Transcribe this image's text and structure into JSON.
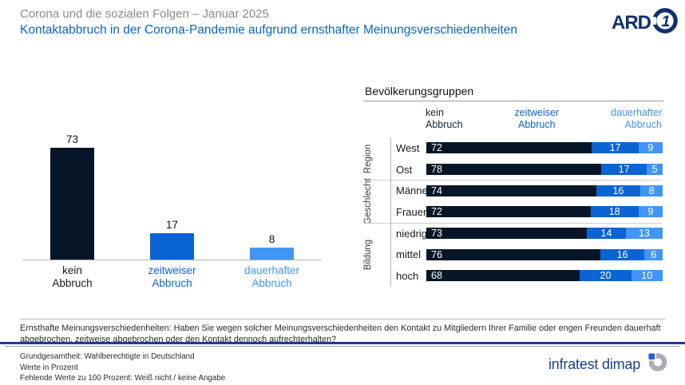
{
  "header": {
    "supertitle": "Corona und die sozialen Folgen – Januar 2025",
    "title": "Kontaktabbruch in der Corona-Pandemie aufgrund ernsthafter Meinungsverschiedenheiten",
    "ard_logo_text": "ARD"
  },
  "colors": {
    "dark_navy_bar": "#071626",
    "medium_blue_bar": "#0a64d4",
    "light_blue_bar": "#4195f4",
    "title_blue": "#0d63c8",
    "supertitle_gray": "#8a8a8a",
    "footer_navy": "#203d8f",
    "brand_navy": "#1d3e91"
  },
  "chart_data": [
    {
      "type": "bar",
      "title": "",
      "categories": [
        "kein\nAbbruch",
        "zeitweiser\nAbbruch",
        "dauerhafter\nAbbruch"
      ],
      "values": [
        73,
        17,
        8
      ],
      "bar_colors": [
        "#071626",
        "#0a64d4",
        "#4195f4"
      ],
      "label_colors": [
        "#1a1a1a",
        "#0a64d4",
        "#4195f4"
      ],
      "xlabel": "",
      "ylabel": "",
      "unit": "Prozent",
      "ylim": [
        0,
        100
      ],
      "grid": false,
      "value_labels": "above bars"
    },
    {
      "type": "bar",
      "subtype": "horizontal-stacked-normalized",
      "title": "Bevölkerungsgruppen",
      "legend": [
        "kein\nAbbruch",
        "zeitweiser\nAbbruch",
        "dauerhafter\nAbbruch"
      ],
      "legend_position": "top",
      "series_names": [
        "kein Abbruch",
        "zeitweiser Abbruch",
        "dauerhafter Abbruch"
      ],
      "segment_colors": [
        "#071626",
        "#0a64d4",
        "#4195f4"
      ],
      "unit": "Prozent",
      "groups": [
        {
          "name": "Region",
          "rows": [
            {
              "label": "West",
              "values": [
                72,
                17,
                9
              ]
            },
            {
              "label": "Ost",
              "values": [
                78,
                17,
                5
              ]
            }
          ]
        },
        {
          "name": "Geschlecht",
          "rows": [
            {
              "label": "Männer",
              "values": [
                74,
                16,
                8
              ]
            },
            {
              "label": "Frauen",
              "values": [
                72,
                18,
                9
              ]
            }
          ]
        },
        {
          "name": "Bildung",
          "rows": [
            {
              "label": "niedrig",
              "values": [
                73,
                14,
                13
              ]
            },
            {
              "label": "mittel",
              "values": [
                76,
                16,
                6
              ]
            },
            {
              "label": "hoch",
              "values": [
                68,
                20,
                10
              ]
            }
          ]
        }
      ]
    }
  ],
  "footer": {
    "question": "Ernsthafte Meinungsverschiedenheiten: Haben Sie wegen solcher Meinungsverschiedenheiten den Kontakt zu Mitgliedern Ihrer Familie oder engen Freunden dauerhaft abgebrochen, zeitweise abgebrochen oder den Kontakt dennoch aufrechterhalten?",
    "source_lines": [
      "Grundgesamtheit: Wahlberechtigte in Deutschland",
      "Werte in Prozent",
      "Fehlende Werte zu 100 Prozent: Weiß nicht / keine Angabe"
    ],
    "brand": "infratest dimap"
  }
}
